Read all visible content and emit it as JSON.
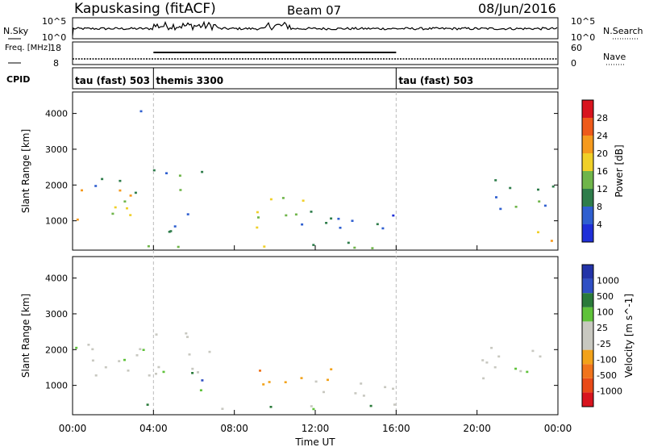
{
  "header": {
    "station": "Kapuskasing (fitACF)",
    "beam": "Beam 07",
    "date": "08/Jun/2016"
  },
  "colors": {
    "power_scale": [
      "#1f2fd8",
      "#2f5fd0",
      "#2e7d4b",
      "#6fb54a",
      "#f0d028",
      "#f59a1e",
      "#ee5a1a",
      "#d8141e"
    ],
    "velocity_scale": [
      "#2233a8",
      "#2f4fc4",
      "#2a7a3a",
      "#5fc23a",
      "#c8c8c0",
      "#c8c8c0",
      "#f2a21a",
      "#f0741c",
      "#e84a18",
      "#d8141e"
    ],
    "axis": "#000000",
    "guide_line": "#bbbbbb"
  },
  "chart_data": [
    {
      "type": "line",
      "name_left": "N.Sky",
      "name_right": "N.Search",
      "left_ticks": [
        "10^5",
        "10^0"
      ],
      "right_ticks": [
        "10^5",
        "10^0"
      ],
      "legend_right_line": "dotted"
    },
    {
      "type": "line",
      "ylabel_left": "Freq. [MHz]",
      "left_ticks": [
        "18",
        "8"
      ],
      "ylabel_right": "Nave",
      "right_ticks": [
        "60",
        "0"
      ],
      "themis_segment": {
        "x_start_h": 4.0,
        "x_end_h": 16.0
      }
    },
    {
      "type": "table",
      "label": "CPID",
      "segments": [
        {
          "label": "tau (fast) 503",
          "start_h": 0,
          "end_h": 4
        },
        {
          "label": "themis 3300",
          "start_h": 4,
          "end_h": 16
        },
        {
          "label": "tau (fast) 503",
          "start_h": 16,
          "end_h": 24
        }
      ]
    },
    {
      "type": "heatmap",
      "quantity": "power",
      "ylabel": "Slant Range [km]",
      "yticks": [
        "1000",
        "2000",
        "3000",
        "4000"
      ],
      "ylim": [
        180,
        4600
      ],
      "colorbar_label": "Power [dB]",
      "colorbar_ticks": [
        "4",
        "8",
        "12",
        "16",
        "20",
        "24",
        "28"
      ],
      "regions": [
        {
          "t": [
            0.0,
            3.9
          ],
          "r": [
            900,
            1900
          ],
          "level": 4
        },
        {
          "t": [
            1.0,
            3.6
          ],
          "r": [
            1600,
            2200
          ],
          "level": 2
        },
        {
          "t": [
            3.9,
            7.0
          ],
          "r": [
            1850,
            2550
          ],
          "level": 2
        },
        {
          "t": [
            2.9,
            3.4
          ],
          "r": [
            3700,
            4300
          ],
          "level": 1
        },
        {
          "t": [
            4.4,
            6.6
          ],
          "r": [
            650,
            1500
          ],
          "level": 2
        },
        {
          "t": [
            3.5,
            15.8
          ],
          "r": [
            250,
            500
          ],
          "level": 3
        },
        {
          "t": [
            8.7,
            13.4
          ],
          "r": [
            800,
            1700
          ],
          "level": 3
        },
        {
          "t": [
            10.5,
            16.0
          ],
          "r": [
            600,
            1200
          ],
          "level": 1
        },
        {
          "t": [
            20.0,
            24.0
          ],
          "r": [
            1300,
            2200
          ],
          "level": 2
        },
        {
          "t": [
            22.6,
            24.0
          ],
          "r": [
            400,
            1100
          ],
          "level": 5
        }
      ]
    },
    {
      "type": "heatmap",
      "quantity": "velocity",
      "ylabel": "Slant Range [km]",
      "yticks": [
        "1000",
        "2000",
        "3000",
        "4000"
      ],
      "ylim": [
        180,
        4600
      ],
      "colorbar_label": "Velocity [m s^-1]",
      "colorbar_ticks": [
        "1000",
        "500",
        "100",
        "25",
        "-25",
        "-100",
        "-500",
        "-1000"
      ],
      "xlabel": "Time UT",
      "xticks": [
        "00:00",
        "04:00",
        "08:00",
        "12:00",
        "16:00",
        "20:00",
        "00:00"
      ],
      "xlim": [
        0,
        24
      ],
      "regions": [
        {
          "t": [
            0.0,
            7.0
          ],
          "r": [
            1300,
            2600
          ],
          "level": 4
        },
        {
          "t": [
            4.4,
            6.6
          ],
          "r": [
            650,
            1500
          ],
          "level": 2
        },
        {
          "t": [
            8.7,
            13.0
          ],
          "r": [
            900,
            1700
          ],
          "level": 6
        },
        {
          "t": [
            3.5,
            16.0
          ],
          "r": [
            250,
            500
          ],
          "level": 3
        },
        {
          "t": [
            10.0,
            16.0
          ],
          "r": [
            650,
            1100
          ],
          "level": 4
        },
        {
          "t": [
            20.0,
            24.0
          ],
          "r": [
            900,
            2100
          ],
          "level": 4
        }
      ]
    }
  ]
}
